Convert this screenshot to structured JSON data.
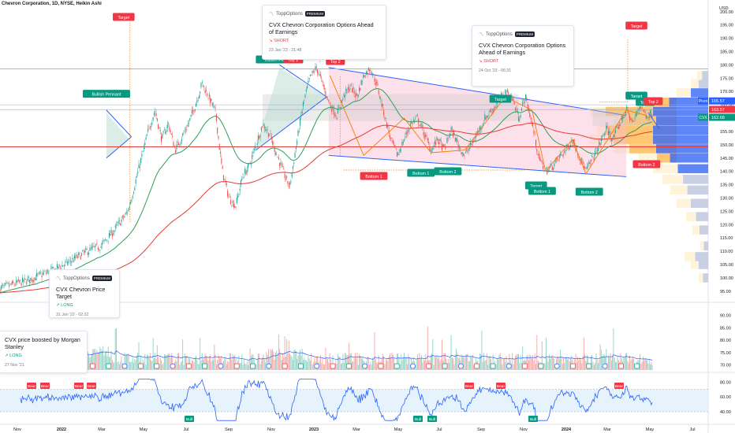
{
  "header": {
    "title": "Chevron Corporation, 1D, NYSE, Heikin Ashi",
    "currency": "USD"
  },
  "colors": {
    "up": "#26a69a",
    "down": "#ef5350",
    "bullish_tag": "#089981",
    "bearish_tag": "#f23645",
    "wedge_line": "#2962ff",
    "ema_green": "#2e9e5b",
    "ema_red": "#e53935",
    "volume_ma": "#2962ff",
    "rsi_line": "#2962ff",
    "vp_blue": "#2962ff",
    "vp_orange": "#ff9800"
  },
  "chart_data": [
    {
      "type": "candlestick",
      "name": "price",
      "x_labels": [
        "Nov",
        "2022",
        "Mar",
        "May",
        "Jul",
        "Sep",
        "Nov",
        "2023",
        "Mar",
        "May",
        "Jul",
        "Sep",
        "Nov",
        "2024",
        "Mar",
        "May",
        "Jul"
      ],
      "y_ticks": [
        95,
        100,
        105,
        110,
        115,
        120,
        125,
        130,
        135,
        140,
        145,
        150,
        155,
        160,
        165,
        170,
        175,
        180,
        185,
        190,
        195,
        200
      ],
      "ylim": [
        92,
        202
      ],
      "price_path": [
        [
          0,
          96
        ],
        [
          4,
          99
        ],
        [
          8,
          103
        ],
        [
          11,
          107
        ],
        [
          13,
          110
        ],
        [
          15,
          112
        ],
        [
          17,
          118
        ],
        [
          19,
          125
        ],
        [
          20,
          135
        ],
        [
          22,
          155
        ],
        [
          23,
          163
        ],
        [
          24,
          152
        ],
        [
          25,
          158
        ],
        [
          26,
          148
        ],
        [
          27,
          153
        ],
        [
          28,
          158
        ],
        [
          29,
          165
        ],
        [
          30,
          173
        ],
        [
          31,
          168
        ],
        [
          32,
          162
        ],
        [
          33,
          140
        ],
        [
          34,
          130
        ],
        [
          35,
          127
        ],
        [
          36,
          138
        ],
        [
          37,
          142
        ],
        [
          38,
          150
        ],
        [
          39,
          158
        ],
        [
          40,
          154
        ],
        [
          41,
          147
        ],
        [
          42,
          140
        ],
        [
          43,
          134
        ],
        [
          44,
          150
        ],
        [
          45,
          165
        ],
        [
          46,
          175
        ],
        [
          47,
          179
        ],
        [
          48,
          172
        ],
        [
          49,
          165
        ],
        [
          50,
          161
        ],
        [
          51,
          168
        ],
        [
          52,
          172
        ],
        [
          53,
          168
        ],
        [
          54,
          176
        ],
        [
          55,
          179
        ],
        [
          56,
          172
        ],
        [
          57,
          162
        ],
        [
          58,
          152
        ],
        [
          59,
          146
        ],
        [
          60,
          152
        ],
        [
          61,
          158
        ],
        [
          62,
          160
        ],
        [
          63,
          154
        ],
        [
          64,
          148
        ],
        [
          65,
          152
        ],
        [
          66,
          148
        ],
        [
          67,
          156
        ],
        [
          68,
          150
        ],
        [
          69,
          146
        ],
        [
          70,
          150
        ],
        [
          71,
          155
        ],
        [
          72,
          160
        ],
        [
          73,
          163
        ],
        [
          74,
          166
        ],
        [
          75,
          170
        ],
        [
          76,
          168
        ],
        [
          77,
          160
        ],
        [
          78,
          168
        ],
        [
          79,
          158
        ],
        [
          80,
          145
        ],
        [
          81,
          140
        ],
        [
          82,
          142
        ],
        [
          83,
          145
        ],
        [
          84,
          148
        ],
        [
          85,
          152
        ],
        [
          86,
          146
        ],
        [
          87,
          140
        ],
        [
          88,
          145
        ],
        [
          89,
          150
        ],
        [
          90,
          156
        ],
        [
          91,
          152
        ],
        [
          92,
          158
        ],
        [
          93,
          163
        ],
        [
          94,
          158
        ],
        [
          95,
          165
        ],
        [
          96,
          161
        ],
        [
          97,
          162
        ]
      ],
      "last_price": 162.68,
      "price_labels": [
        {
          "label": "Pivot",
          "value": "165.57"
        },
        {
          "label": "",
          "value": "163.57"
        },
        {
          "label": "CVX",
          "value": "162.68"
        }
      ],
      "horizontal_levels": [
        {
          "value": 149.2,
          "color": "#e53935"
        },
        {
          "value": 178.5,
          "color": "#b2b5be"
        }
      ]
    },
    {
      "type": "bar",
      "name": "volume",
      "y_ticks": [
        70,
        75,
        80,
        85,
        90
      ],
      "ylim": [
        68,
        94
      ]
    },
    {
      "type": "line",
      "name": "rsi",
      "y_ticks": [
        40,
        60,
        80
      ],
      "ylim": [
        24,
        90
      ],
      "band": [
        40,
        70
      ]
    }
  ],
  "patterns": {
    "bullish_pennant_1": "Bullish Pennant",
    "bullish_pennant_2": "Bullish Pennant",
    "top_1a": "Top 1",
    "top_2a": "Top 2",
    "top_1b": "Top 1",
    "top_2b": "Top 2",
    "target_1": "Target",
    "target_2": "Target",
    "target_3": "Target",
    "target_4": "Target",
    "target_5": "Target",
    "bottom_1a": "Bottom 1",
    "bottom_1b": "Bottom 1",
    "bottom_2a": "Bottom 2",
    "bottom_2b": "Bottom 2",
    "bottom_1c": "Bottom 1",
    "bottom_2c": "Bottom 2"
  },
  "rsi_tags": {
    "bear": "Bear",
    "bull": "Bull"
  },
  "ideas": [
    {
      "brand": "ToppOptions",
      "badge": "PREMIUM",
      "title": "CVX Chevron Corporation Options Ahead of Earnings",
      "direction": "SHORT",
      "date": "23 Jan '23 - 21:48"
    },
    {
      "brand": "ToppOptions",
      "badge": "PREMIUM",
      "title": "CVX Chevron Corporation Options Ahead of Earnings",
      "direction": "SHORT",
      "date": "24 Oct '23 - 06:31"
    },
    {
      "brand": "ToppOptions",
      "badge": "PREMIUM",
      "title": "CVX Chevron Price Target",
      "direction": "LONG",
      "date": "31 Jan '22 - 02:22"
    },
    {
      "brand": "",
      "badge": "",
      "title": "CVX price boosted by Morgan Stanley",
      "direction": "LONG",
      "date": "27 Nov '21"
    }
  ]
}
